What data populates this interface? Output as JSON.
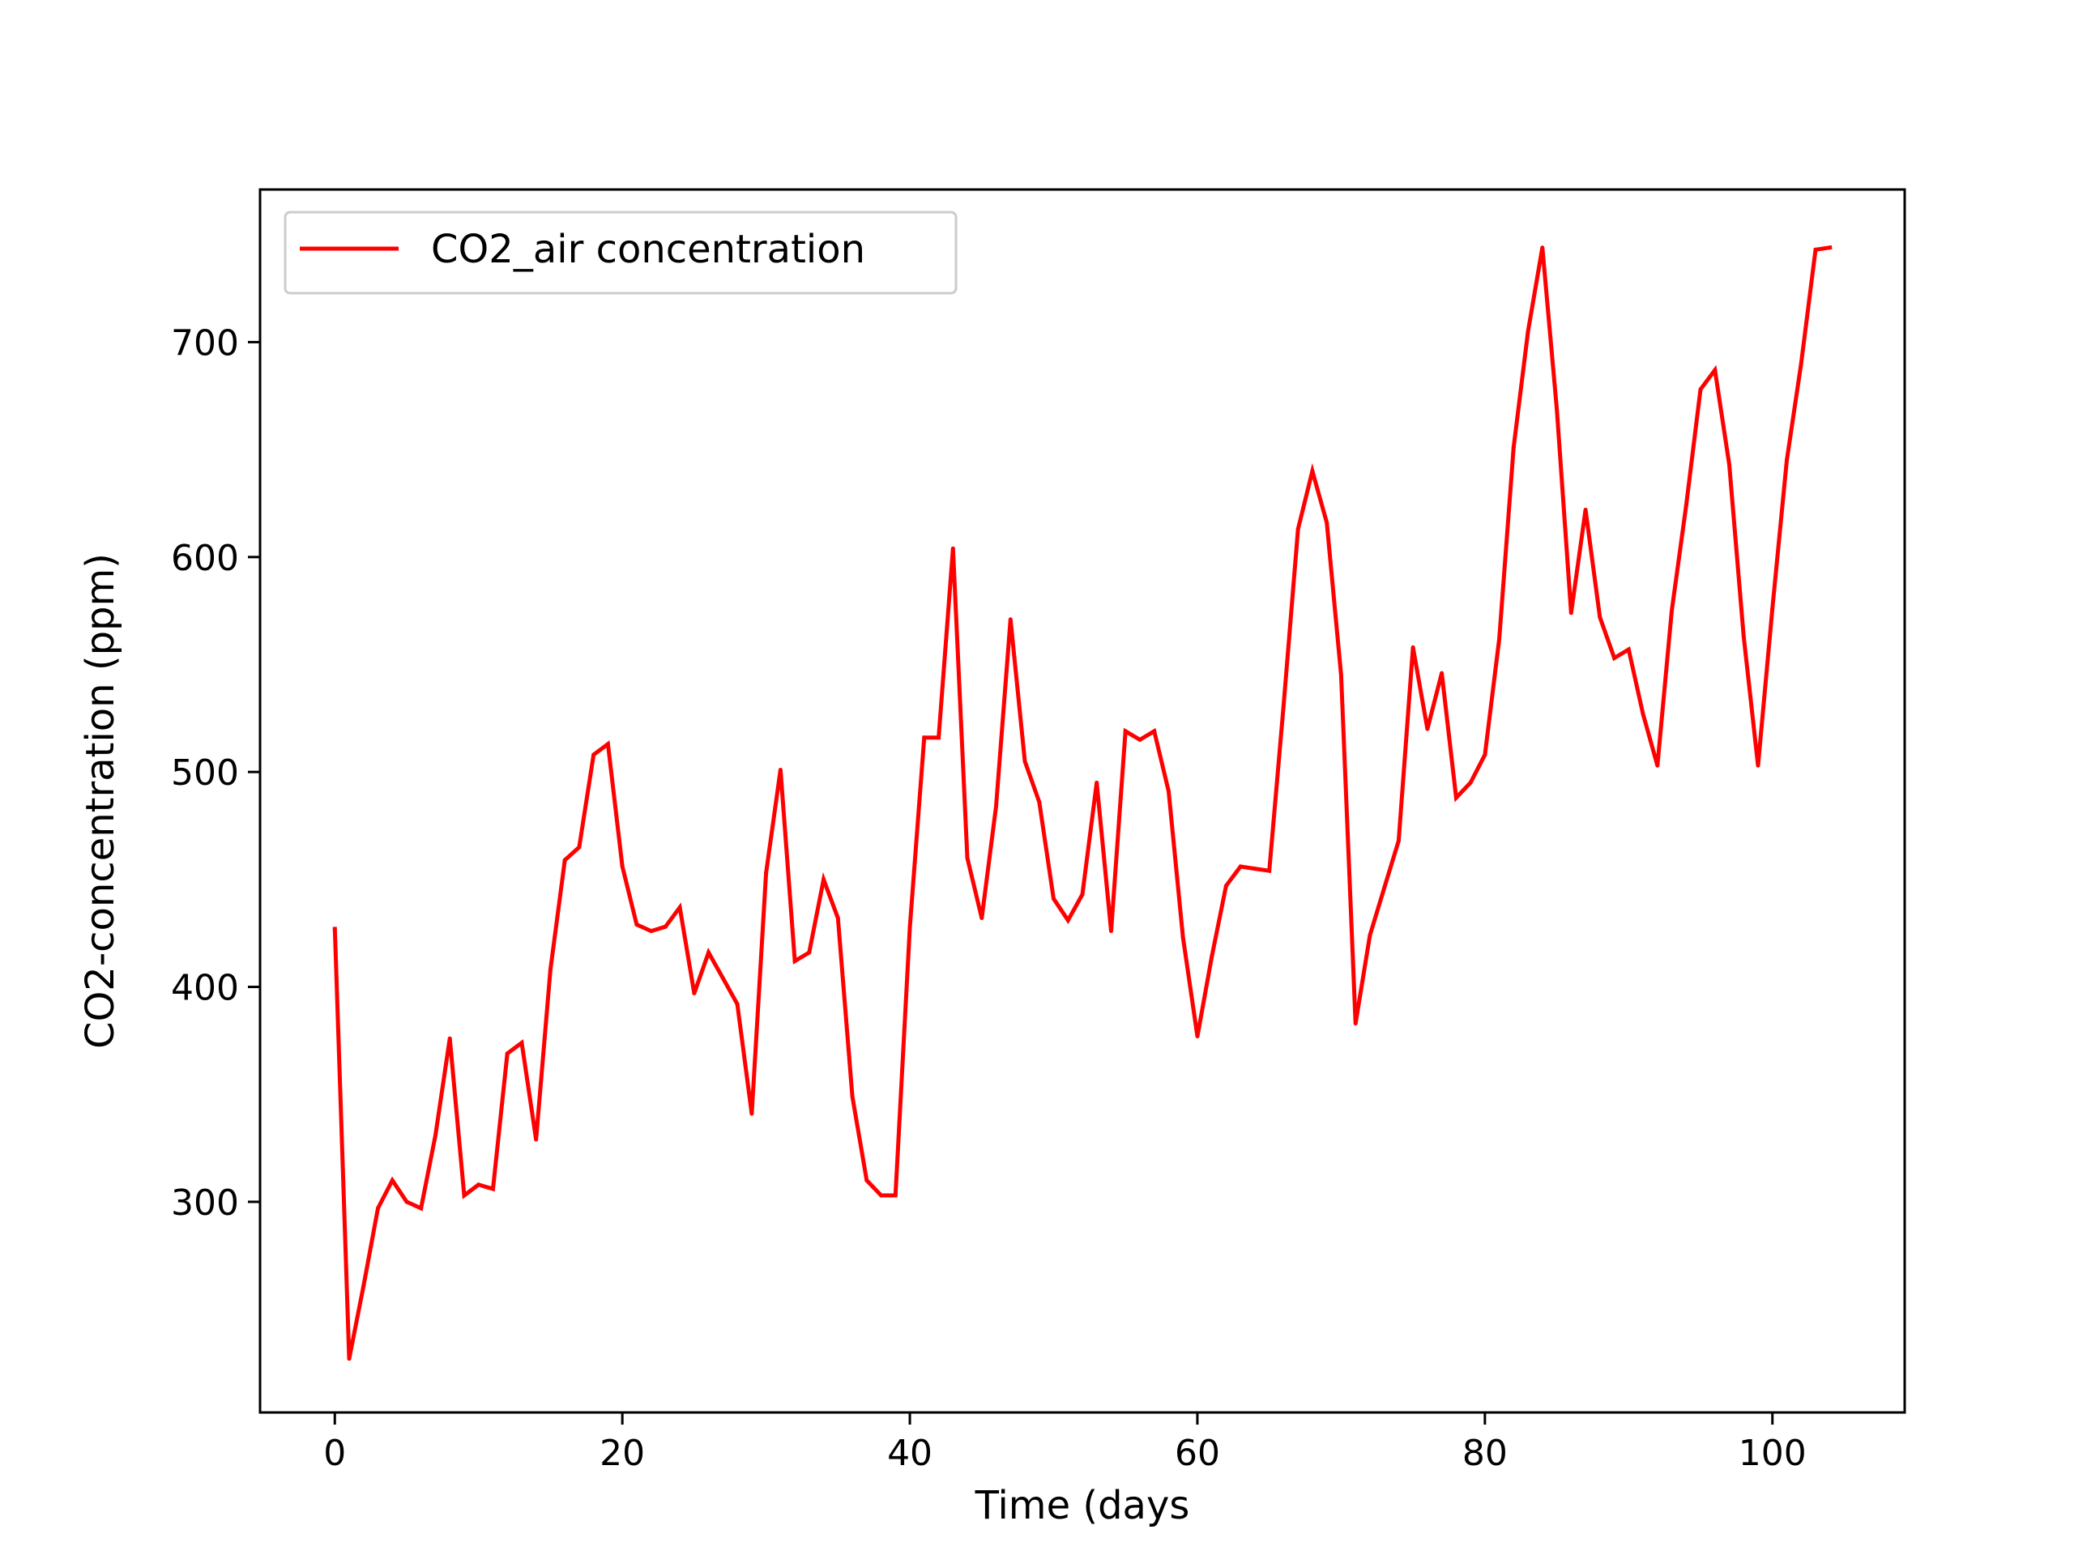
{
  "chart_data": {
    "type": "line",
    "title": "",
    "xlabel": "Time (days",
    "ylabel": "CO2-concentration (ppm)",
    "xlim": [
      -5.2,
      109.2
    ],
    "ylim": [
      202,
      771
    ],
    "xticks": [
      0,
      20,
      40,
      60,
      80,
      100
    ],
    "yticks": [
      300,
      400,
      500,
      600,
      700
    ],
    "grid": false,
    "legend_position": "top-left",
    "series": [
      {
        "name": "CO2_air concentration",
        "color": "#ff0000",
        "x": [
          0,
          1,
          2,
          3,
          4,
          5,
          6,
          7,
          8,
          9,
          10,
          11,
          12,
          13,
          14,
          15,
          16,
          17,
          18,
          19,
          20,
          21,
          22,
          23,
          24,
          25,
          26,
          27,
          28,
          29,
          30,
          31,
          32,
          33,
          34,
          35,
          36,
          37,
          38,
          39,
          40,
          41,
          42,
          43,
          44,
          45,
          46,
          47,
          48,
          49,
          50,
          51,
          52,
          53,
          54,
          55,
          56,
          57,
          58,
          59,
          60,
          61,
          62,
          63,
          64,
          65,
          66,
          67,
          68,
          69,
          70,
          71,
          72,
          73,
          74,
          75,
          76,
          77,
          78,
          79,
          80,
          81,
          82,
          83,
          84,
          85,
          86,
          87,
          88,
          89,
          90,
          91,
          92,
          93,
          94,
          95,
          96,
          97,
          98,
          99,
          100,
          101,
          102,
          103,
          104
        ],
        "y": [
          427,
          227,
          261,
          297,
          310,
          300,
          297,
          331,
          376,
          303,
          308,
          306,
          369,
          374,
          329,
          408,
          459,
          465,
          508,
          513,
          456,
          429,
          426,
          428,
          437,
          397,
          416,
          404,
          392,
          341,
          453,
          501,
          412,
          416,
          450,
          432,
          349,
          310,
          303,
          303,
          428,
          516,
          516,
          604,
          460,
          432,
          484,
          571,
          505,
          486,
          441,
          431,
          443,
          495,
          426,
          519,
          515,
          519,
          491,
          423,
          377,
          414,
          447,
          456,
          455,
          454,
          531,
          613,
          640,
          616,
          545,
          383,
          424,
          446,
          468,
          558,
          520,
          546,
          488,
          495,
          508,
          562,
          651,
          705,
          744,
          669,
          574,
          622,
          572,
          553,
          557,
          527,
          503,
          575,
          624,
          678,
          687,
          643,
          563,
          503,
          576,
          645,
          690,
          743,
          744
        ]
      }
    ]
  }
}
